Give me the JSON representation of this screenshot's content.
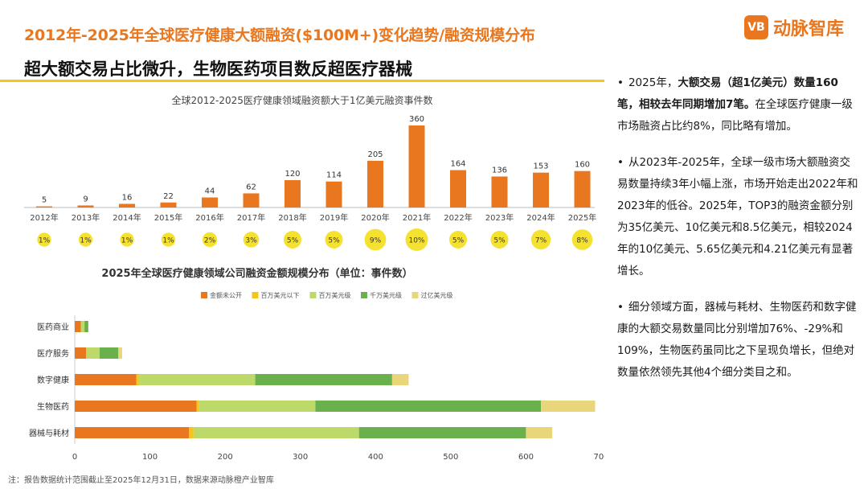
{
  "header": {
    "title": "2012年-2025年全球医疗健康大额融资($100M+)变化趋势/融资规模分布",
    "subtitle": "超大额交易占比微升，生物医药项目数反超医疗器械",
    "brand_mark": "VB",
    "brand_name": "动脉智库"
  },
  "chart_data": [
    {
      "type": "bar",
      "title": "全球2012-2025医疗健康领域融资额大于1亿美元融资事件数",
      "categories": [
        "2012年",
        "2013年",
        "2014年",
        "2015年",
        "2016年",
        "2017年",
        "2018年",
        "2019年",
        "2020年",
        "2021年",
        "2022年",
        "2023年",
        "2024年",
        "2025年"
      ],
      "values": [
        5,
        9,
        16,
        22,
        44,
        62,
        120,
        114,
        205,
        360,
        164,
        136,
        153,
        160
      ],
      "share_labels": [
        "1%",
        "1%",
        "1%",
        "1%",
        "2%",
        "3%",
        "5%",
        "5%",
        "9%",
        "10%",
        "5%",
        "5%",
        "7%",
        "8%"
      ],
      "share_values": [
        1,
        1,
        1,
        1,
        2,
        3,
        5,
        5,
        9,
        10,
        5,
        5,
        7,
        8
      ],
      "bar_color": "#e8771f",
      "bubble_color": "#f5e130",
      "grid": false
    },
    {
      "type": "bar",
      "orientation": "horizontal",
      "stacked": true,
      "title": "2025年全球医疗健康领域公司融资金额规模分布（单位：事件数）",
      "categories": [
        "医药商业",
        "医疗服务",
        "数字健康",
        "生物医药",
        "器械与耗材"
      ],
      "series": [
        {
          "name": "金额未公开",
          "color": "#e8771f",
          "values": [
            8,
            15,
            82,
            162,
            152
          ]
        },
        {
          "name": "百万美元以下",
          "color": "#f5c518",
          "values": [
            0,
            0,
            3,
            3,
            6
          ]
        },
        {
          "name": "百万美元级",
          "color": "#bcd96a",
          "values": [
            5,
            18,
            155,
            155,
            220
          ]
        },
        {
          "name": "千万美元级",
          "color": "#6ab04c",
          "values": [
            5,
            25,
            182,
            300,
            222
          ]
        },
        {
          "name": "过亿美元级",
          "color": "#ead67a",
          "values": [
            0,
            5,
            22,
            72,
            35
          ]
        }
      ],
      "xlim": [
        0,
        700
      ],
      "xticks": [
        "0",
        "100",
        "200",
        "300",
        "400",
        "500",
        "600",
        "700"
      ],
      "legend_position": "top"
    }
  ],
  "bullets": [
    {
      "parts": [
        {
          "t": "2025年，",
          "b": false
        },
        {
          "t": "大额交易（超1亿美元）数量160笔，相较去年同期增加7笔。",
          "b": true
        },
        {
          "t": "在全球医疗健康一级市场融资占比约8%，同比略有增加。",
          "b": false
        }
      ]
    },
    {
      "parts": [
        {
          "t": "从2023年-2025年，全球一级市场大额融资交易数量持续3年小幅上涨，市场开始走出2022年和2023年的低谷。2025年，TOP3的融资金额分别为35亿美元、10亿美元和8.5亿美元，相较2024年的10亿美元、5.65亿美元和4.21亿美元有显著增长。",
          "b": false
        }
      ]
    },
    {
      "parts": [
        {
          "t": "细分领域方面，器械与耗材、生物医药和数字健康的大额交易数量同比分别增加76%、-29%和109%，生物医药虽同比之下呈现负增长，但绝对数量依然领先其他4个细分类目之和。",
          "b": false
        }
      ]
    }
  ],
  "note": "注：报告数据统计范围截止至2025年12月31日，数据来源动脉橙产业智库"
}
